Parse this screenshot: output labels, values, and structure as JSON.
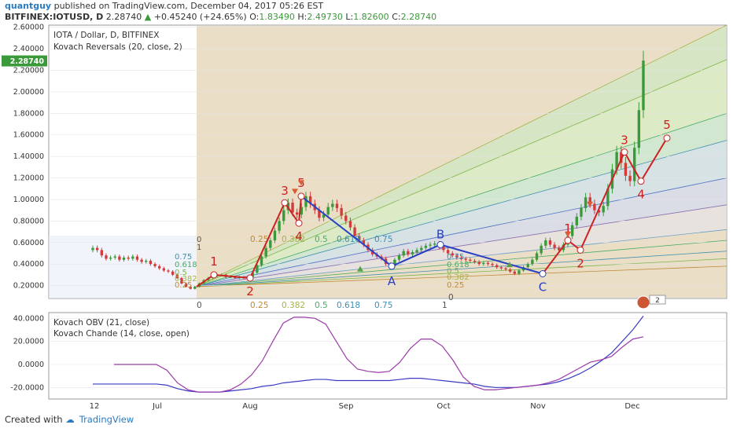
{
  "header": {
    "user": "quantguy",
    "published": "published on TradingView.com, December 04, 2017 05:26 EST",
    "symbol": "BITFINEX:IOTUSD, D",
    "last": "2.28740",
    "change": "+0.45240 (+24.65%)",
    "o_label": "O:",
    "o": "1.83490",
    "h_label": "H:",
    "h": "2.49730",
    "l_label": "L:",
    "l": "1.82600",
    "c_label": "C:",
    "c": "2.28740"
  },
  "footer": {
    "created": "Created with",
    "brand": "TradingView"
  },
  "colors": {
    "up": "#3a9a3a",
    "down": "#d23b3b",
    "wave_red": "#cc2222",
    "wave_blue": "#2a3fc4",
    "obv": "#9b3aa8",
    "chande": "#3a3ac4",
    "accent": "#2a7bc4",
    "last_price_bg": "#3a9a3a"
  },
  "chart_data": [
    {
      "type": "candlestick",
      "title": "IOTA / Dollar, D, BITFINEX",
      "indicator": "Kovach Reversals (20, close, 2)",
      "ylim": [
        0.08,
        2.62
      ],
      "y_ticks": [
        "2.60000",
        "2.40000",
        "2.20000",
        "2.00000",
        "1.80000",
        "1.60000",
        "1.40000",
        "1.20000",
        "1.00000",
        "0.80000",
        "0.60000",
        "0.40000",
        "0.20000"
      ],
      "last_price_label": "2.28740",
      "x_ticks": [
        "12",
        "Jul",
        "Aug",
        "Sep",
        "Oct",
        "Nov",
        "Dec"
      ],
      "wave_12345_first": {
        "labels": [
          "1",
          "2",
          "3",
          "4",
          "5"
        ],
        "values": [
          0.3,
          0.27,
          0.97,
          0.78,
          1.03
        ]
      },
      "abc_wave": {
        "labels": [
          "B",
          "A",
          "C"
        ],
        "values": [
          0.58,
          0.38,
          0.31
        ]
      },
      "wave_12345_second": {
        "labels": [
          "1",
          "2",
          "3",
          "4",
          "5"
        ],
        "values": [
          0.62,
          0.53,
          1.44,
          1.17,
          1.57
        ]
      },
      "fib_levels_left": [
        "0",
        "1",
        "0.75",
        "0.618",
        "0.5",
        "0.382",
        "0.25"
      ],
      "fib_levels_mid": [
        "0.25",
        "0.382",
        "0.5",
        "0.618",
        "0.75"
      ],
      "fib_levels_bottom": [
        "0",
        "0.25",
        "0.382",
        "0.5",
        "0.618",
        "0.75"
      ],
      "fib_levels_right": [
        "0.75",
        "0.618",
        "0.5",
        "0.382",
        "0.25",
        "0"
      ],
      "fib_bottom_right": "1",
      "fib_bottom_mid": "1",
      "fib_mid_top": "0",
      "fib_mid_zero": "0",
      "closes": [
        0.55,
        0.53,
        0.48,
        0.45,
        0.46,
        0.47,
        0.44,
        0.46,
        0.45,
        0.47,
        0.44,
        0.42,
        0.43,
        0.4,
        0.38,
        0.36,
        0.34,
        0.33,
        0.3,
        0.27,
        0.22,
        0.19,
        0.17,
        0.19,
        0.22,
        0.25,
        0.27,
        0.29,
        0.3,
        0.3,
        0.28,
        0.28,
        0.27,
        0.28,
        0.27,
        0.28,
        0.32,
        0.39,
        0.47,
        0.55,
        0.62,
        0.71,
        0.8,
        0.9,
        0.97,
        0.88,
        0.86,
        0.93,
        1.03,
        0.96,
        0.9,
        0.83,
        0.86,
        0.93,
        0.96,
        0.92,
        0.85,
        0.8,
        0.74,
        0.66,
        0.62,
        0.58,
        0.53,
        0.49,
        0.47,
        0.45,
        0.4,
        0.38,
        0.44,
        0.48,
        0.52,
        0.49,
        0.51,
        0.53,
        0.55,
        0.57,
        0.58,
        0.59,
        0.56,
        0.53,
        0.5,
        0.48,
        0.46,
        0.45,
        0.44,
        0.43,
        0.42,
        0.4,
        0.41,
        0.4,
        0.39,
        0.37,
        0.36,
        0.35,
        0.33,
        0.31,
        0.34,
        0.37,
        0.4,
        0.44,
        0.5,
        0.57,
        0.62,
        0.58,
        0.55,
        0.53,
        0.58,
        0.66,
        0.76,
        0.84,
        0.92,
        1.02,
        0.96,
        0.9,
        0.88,
        0.94,
        1.1,
        1.28,
        1.44,
        1.34,
        1.22,
        1.17,
        1.48,
        1.83,
        2.29
      ]
    },
    {
      "type": "line",
      "title": "Kovach OBV (21, close)",
      "subtitle": "Kovach Chande (14, close, open)",
      "ylim": [
        -30,
        45
      ],
      "y_ticks": [
        "40.0000",
        "20.0000",
        "0.0000",
        "-20.0000"
      ],
      "series": [
        {
          "name": "Kovach OBV (21, close)",
          "values": [
            -17,
            -17,
            -17,
            -17,
            -17,
            -17,
            -17,
            -18,
            -21,
            -23,
            -24,
            -24,
            -24,
            -23,
            -22,
            -21,
            -19,
            -18,
            -16,
            -15,
            -14,
            -13,
            -13,
            -14,
            -14,
            -14,
            -14,
            -14,
            -14,
            -13,
            -12,
            -12,
            -13,
            -14,
            -15,
            -16,
            -17,
            -19,
            -20,
            -20,
            -20,
            -19,
            -18,
            -17,
            -15,
            -12,
            -8,
            -3,
            3,
            10,
            20,
            30,
            42
          ]
        },
        {
          "name": "Kovach Chande (14, close, open)",
          "values": [
            null,
            null,
            0,
            0,
            0,
            0,
            0,
            -5,
            -16,
            -22,
            -24,
            -24,
            -24,
            -22,
            -17,
            -9,
            3,
            20,
            36,
            41,
            41,
            40,
            35,
            20,
            5,
            -4,
            -6,
            -7,
            -6,
            2,
            14,
            22,
            22,
            16,
            4,
            -11,
            -19,
            -22,
            -22,
            -21,
            -20,
            -19,
            -18,
            -16,
            -13,
            -8,
            -3,
            2,
            4,
            7,
            15,
            22,
            24
          ]
        }
      ]
    }
  ]
}
